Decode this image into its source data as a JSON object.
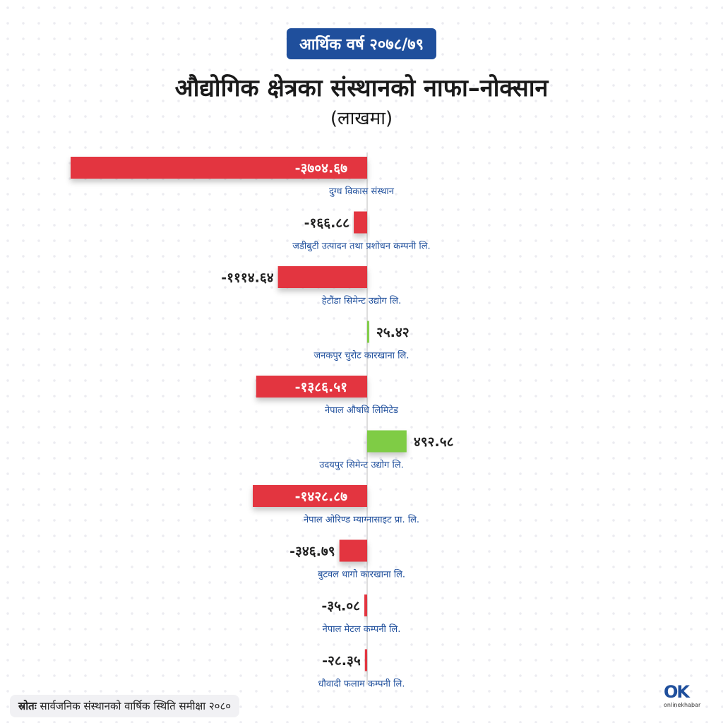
{
  "header": {
    "year_badge": "आर्थिक वर्ष २०७८/७९",
    "title": "औद्योगिक क्षेत्रका संस्थानको नाफा–नोक्सान",
    "subtitle": "(लाखमा)"
  },
  "colors": {
    "loss": "#e3343f",
    "profit": "#7fcc45",
    "label_text": "#1f4f9c",
    "axis": "#bbbbbb"
  },
  "chart_data": {
    "type": "bar",
    "orientation": "horizontal",
    "title": "औद्योगिक क्षेत्रका संस्थानको नाफा–नोक्सान",
    "subtitle": "(लाखमा)",
    "categories": [
      "दुग्ध विकास संस्थान",
      "जडीबुटी उत्पादन तथा प्रशोधन कम्पनी लि.",
      "हेटौंडा सिमेन्ट उद्योग लि.",
      "जनकपुर चुरोट कारखाना लि.",
      "नेपाल औषधि लिमिटेड",
      "उदयपुर सिमेन्ट उद्योग लि.",
      "नेपाल ओरिण्ड म्याग्नासाइट प्रा. लि.",
      "बुटवल धागो कारखाना लि.",
      "नेपाल मेटल कम्पनी लि.",
      "धौवादी फलाम कम्पनी लि."
    ],
    "values": [
      -3704.67,
      -166.88,
      -1114.64,
      25.42,
      -1386.51,
      492.58,
      -1428.87,
      -346.79,
      -35.08,
      -28.35
    ],
    "value_labels": [
      "-३७०४.६७",
      "-१६६.८८",
      "-१११४.६४",
      "२५.४२",
      "-१३८६.५१",
      "४९२.५८",
      "-१४२८.८७",
      "-३४६.७९",
      "-३५.०८",
      "-२८.३५"
    ],
    "xlim": [
      -3704.67,
      492.58
    ],
    "grid": false,
    "legend": "none"
  },
  "footer": {
    "source_label": "स्रोतः",
    "source_text": "सार्वजनिक संस्थानको वार्षिक स्थिति समीक्षा २०८०"
  },
  "logo": {
    "mark": "OK",
    "text": "onlinekhabar"
  }
}
